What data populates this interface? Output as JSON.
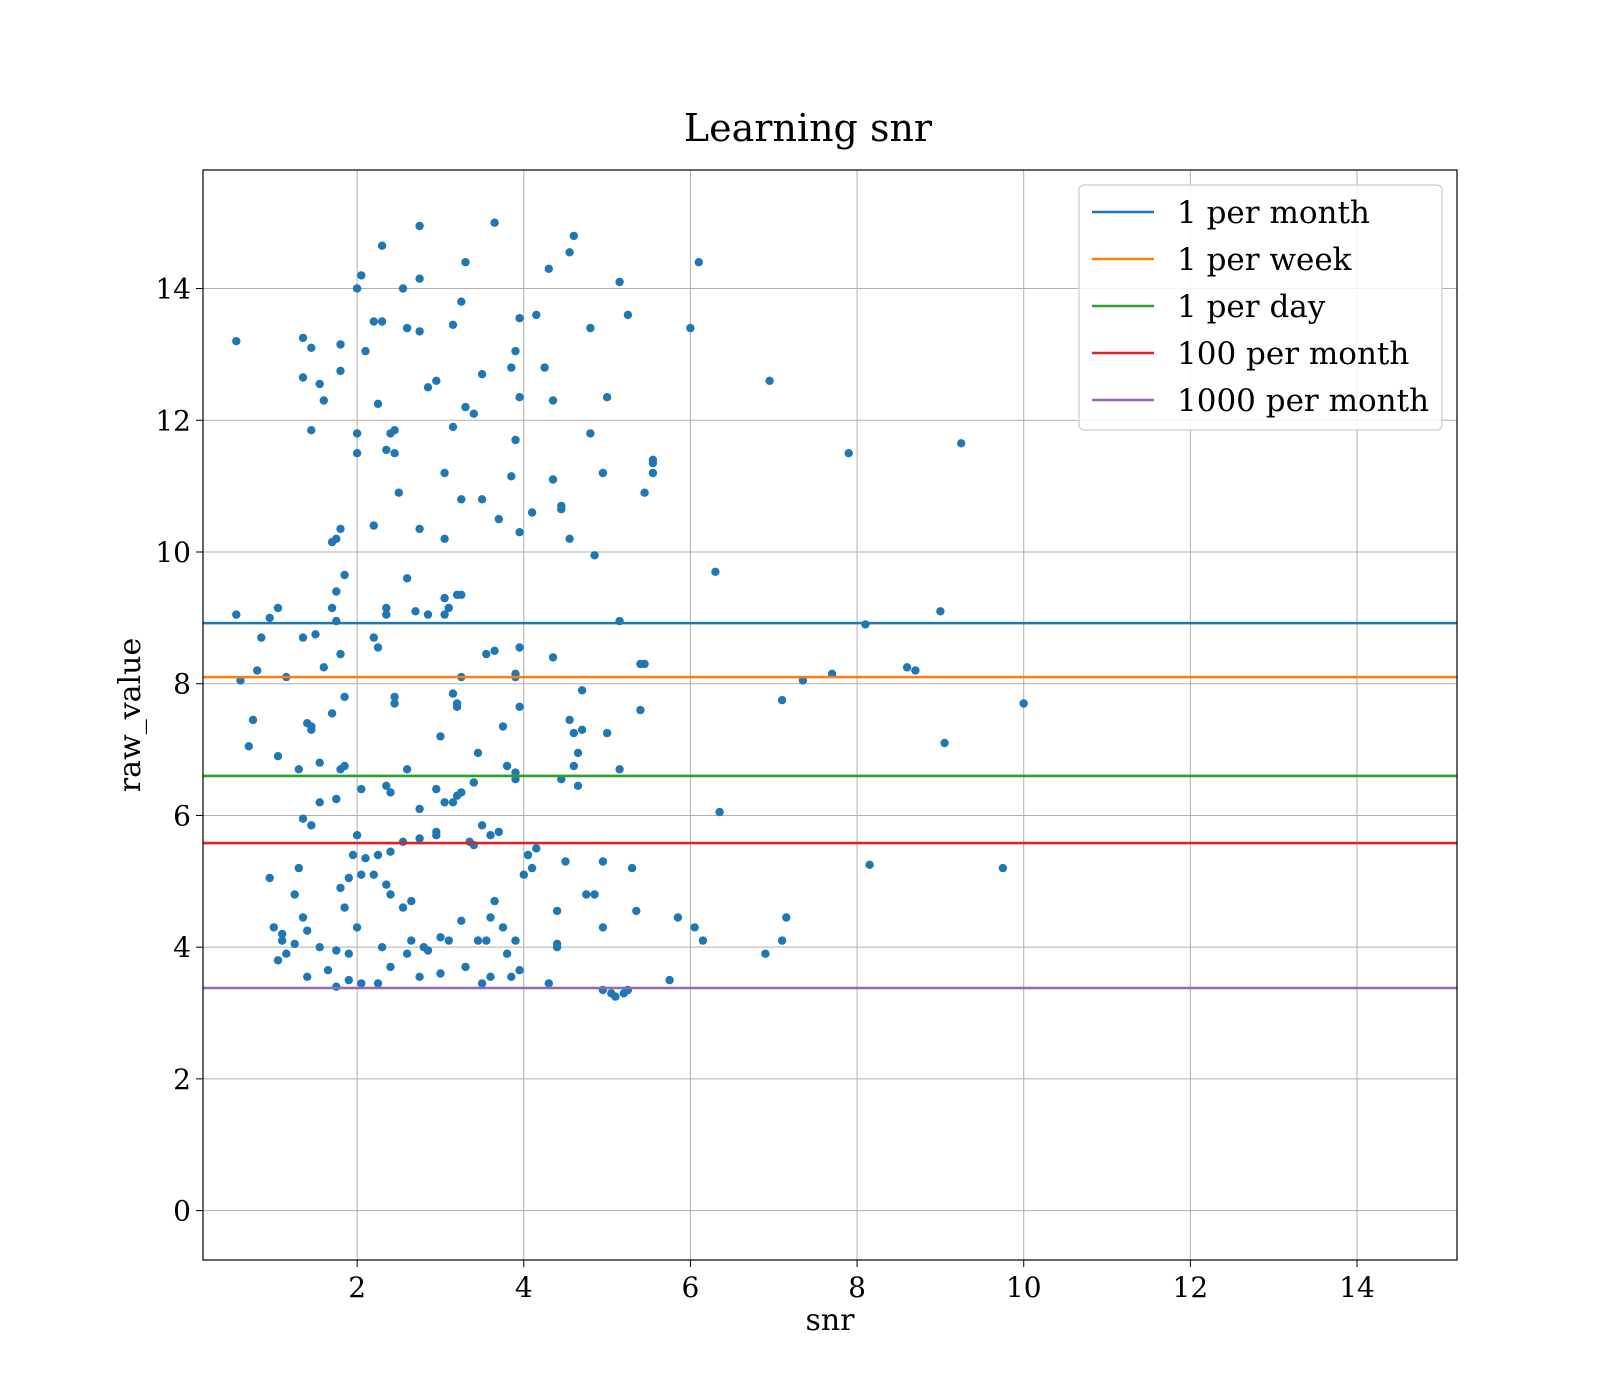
{
  "chart_data": {
    "type": "scatter",
    "title": "Learning snr",
    "xlabel": "snr",
    "ylabel": "raw_value",
    "xlim": [
      0.15,
      15.2
    ],
    "ylim": [
      -0.75,
      15.8
    ],
    "xticks": [
      2,
      4,
      6,
      8,
      10,
      12,
      14
    ],
    "yticks": [
      0,
      2,
      4,
      6,
      8,
      10,
      12,
      14
    ],
    "grid": true,
    "legend_position": "top-right",
    "scatter_color": "#1f77b4",
    "series": [
      {
        "name": "1 per month",
        "type": "hline",
        "y": 8.92,
        "color": "#1f77b4"
      },
      {
        "name": "1 per week",
        "type": "hline",
        "y": 8.1,
        "color": "#ff7f0e"
      },
      {
        "name": "1 per day",
        "type": "hline",
        "y": 6.6,
        "color": "#2ca02c"
      },
      {
        "name": "100 per month",
        "type": "hline",
        "y": 5.58,
        "color": "#d62728"
      },
      {
        "name": "1000 per month",
        "type": "hline",
        "y": 3.38,
        "color": "#9467bd"
      }
    ],
    "points": [
      [
        0.55,
        13.2
      ],
      [
        1.35,
        13.25
      ],
      [
        1.45,
        13.1
      ],
      [
        1.8,
        13.15
      ],
      [
        1.55,
        12.55
      ],
      [
        1.35,
        12.65
      ],
      [
        1.8,
        12.75
      ],
      [
        1.6,
        12.3
      ],
      [
        1.45,
        11.85
      ],
      [
        2.0,
        14.0
      ],
      [
        2.05,
        14.2
      ],
      [
        2.3,
        14.65
      ],
      [
        2.75,
        14.95
      ],
      [
        2.75,
        14.15
      ],
      [
        2.55,
        14.0
      ],
      [
        3.3,
        14.4
      ],
      [
        3.25,
        13.8
      ],
      [
        3.65,
        15.0
      ],
      [
        2.2,
        13.5
      ],
      [
        2.3,
        13.5
      ],
      [
        2.1,
        13.05
      ],
      [
        2.6,
        13.4
      ],
      [
        2.75,
        13.35
      ],
      [
        3.15,
        13.45
      ],
      [
        3.9,
        13.05
      ],
      [
        3.95,
        13.55
      ],
      [
        4.15,
        13.6
      ],
      [
        4.3,
        14.3
      ],
      [
        4.55,
        14.55
      ],
      [
        4.6,
        14.8
      ],
      [
        2.25,
        12.25
      ],
      [
        2.85,
        12.5
      ],
      [
        2.95,
        12.6
      ],
      [
        3.3,
        12.2
      ],
      [
        3.4,
        12.1
      ],
      [
        3.5,
        12.7
      ],
      [
        3.85,
        12.8
      ],
      [
        3.95,
        12.35
      ],
      [
        4.25,
        12.8
      ],
      [
        4.35,
        12.3
      ],
      [
        4.8,
        13.4
      ],
      [
        5.0,
        12.35
      ],
      [
        5.15,
        14.1
      ],
      [
        5.25,
        13.6
      ],
      [
        6.0,
        13.4
      ],
      [
        6.1,
        14.4
      ],
      [
        2.0,
        11.8
      ],
      [
        2.0,
        11.5
      ],
      [
        2.35,
        11.55
      ],
      [
        2.4,
        11.8
      ],
      [
        2.45,
        11.85
      ],
      [
        2.45,
        11.5
      ],
      [
        3.15,
        11.9
      ],
      [
        3.05,
        11.2
      ],
      [
        3.85,
        11.15
      ],
      [
        3.9,
        11.7
      ],
      [
        4.35,
        11.1
      ],
      [
        4.8,
        11.8
      ],
      [
        4.95,
        11.2
      ],
      [
        5.45,
        10.9
      ],
      [
        5.55,
        11.35
      ],
      [
        5.55,
        11.2
      ],
      [
        5.55,
        11.4
      ],
      [
        2.5,
        10.9
      ],
      [
        3.25,
        10.8
      ],
      [
        3.5,
        10.8
      ],
      [
        3.7,
        10.5
      ],
      [
        3.95,
        10.3
      ],
      [
        4.1,
        10.6
      ],
      [
        4.45,
        10.7
      ],
      [
        4.45,
        10.65
      ],
      [
        4.55,
        10.2
      ],
      [
        2.2,
        10.4
      ],
      [
        2.75,
        10.35
      ],
      [
        3.05,
        10.2
      ],
      [
        1.8,
        10.35
      ],
      [
        1.7,
        10.15
      ],
      [
        1.75,
        10.2
      ],
      [
        4.85,
        9.95
      ],
      [
        6.3,
        9.7
      ],
      [
        0.55,
        9.05
      ],
      [
        0.95,
        9.0
      ],
      [
        1.05,
        9.15
      ],
      [
        1.85,
        9.65
      ],
      [
        1.75,
        9.4
      ],
      [
        1.7,
        9.15
      ],
      [
        2.35,
        9.15
      ],
      [
        2.35,
        9.05
      ],
      [
        2.6,
        9.6
      ],
      [
        2.7,
        9.1
      ],
      [
        2.85,
        9.05
      ],
      [
        3.05,
        9.05
      ],
      [
        3.05,
        9.3
      ],
      [
        3.2,
        9.35
      ],
      [
        3.25,
        9.35
      ],
      [
        3.1,
        9.15
      ],
      [
        7.9,
        11.5
      ],
      [
        9.25,
        11.65
      ],
      [
        6.95,
        12.6
      ],
      [
        1.35,
        8.7
      ],
      [
        1.5,
        8.75
      ],
      [
        1.75,
        8.95
      ],
      [
        0.85,
        8.7
      ],
      [
        2.2,
        8.7
      ],
      [
        2.25,
        8.55
      ],
      [
        1.6,
        8.25
      ],
      [
        1.8,
        8.45
      ],
      [
        0.8,
        8.2
      ],
      [
        0.6,
        8.05
      ],
      [
        1.15,
        8.1
      ],
      [
        3.25,
        8.1
      ],
      [
        3.65,
        8.5
      ],
      [
        3.55,
        8.45
      ],
      [
        3.9,
        8.1
      ],
      [
        3.9,
        8.15
      ],
      [
        3.95,
        8.55
      ],
      [
        4.35,
        8.4
      ],
      [
        4.7,
        7.9
      ],
      [
        5.4,
        8.3
      ],
      [
        5.45,
        8.3
      ],
      [
        5.15,
        8.95
      ],
      [
        8.1,
        8.9
      ],
      [
        8.6,
        8.25
      ],
      [
        8.7,
        8.2
      ],
      [
        9.0,
        9.1
      ],
      [
        7.7,
        8.15
      ],
      [
        7.35,
        8.05
      ],
      [
        7.1,
        7.75
      ],
      [
        10.0,
        7.7
      ],
      [
        9.05,
        7.1
      ],
      [
        2.45,
        7.8
      ],
      [
        2.45,
        7.7
      ],
      [
        3.15,
        7.85
      ],
      [
        3.2,
        7.65
      ],
      [
        3.2,
        7.7
      ],
      [
        3.95,
        7.65
      ],
      [
        1.85,
        7.8
      ],
      [
        1.7,
        7.55
      ],
      [
        0.75,
        7.45
      ],
      [
        0.7,
        7.05
      ],
      [
        1.4,
        7.4
      ],
      [
        1.45,
        7.35
      ],
      [
        1.45,
        7.3
      ],
      [
        1.05,
        6.9
      ],
      [
        1.3,
        6.7
      ],
      [
        1.55,
        6.8
      ],
      [
        1.8,
        6.7
      ],
      [
        1.85,
        6.75
      ],
      [
        2.6,
        6.7
      ],
      [
        3.0,
        7.2
      ],
      [
        3.45,
        6.95
      ],
      [
        3.75,
        7.35
      ],
      [
        3.8,
        6.75
      ],
      [
        3.9,
        6.65
      ],
      [
        3.9,
        6.55
      ],
      [
        4.45,
        6.55
      ],
      [
        4.6,
        7.25
      ],
      [
        4.6,
        6.75
      ],
      [
        4.55,
        7.45
      ],
      [
        4.7,
        7.3
      ],
      [
        4.65,
        6.95
      ],
      [
        4.65,
        6.45
      ],
      [
        5.0,
        7.25
      ],
      [
        5.15,
        6.7
      ],
      [
        5.4,
        7.6
      ],
      [
        6.35,
        6.05
      ],
      [
        2.05,
        6.4
      ],
      [
        2.35,
        6.45
      ],
      [
        2.4,
        6.35
      ],
      [
        2.75,
        6.1
      ],
      [
        2.95,
        6.4
      ],
      [
        3.05,
        6.2
      ],
      [
        3.15,
        6.2
      ],
      [
        3.2,
        6.3
      ],
      [
        3.25,
        6.35
      ],
      [
        3.4,
        6.5
      ],
      [
        1.55,
        6.2
      ],
      [
        1.75,
        6.25
      ],
      [
        1.35,
        5.95
      ],
      [
        1.45,
        5.85
      ],
      [
        2.0,
        5.7
      ],
      [
        2.25,
        5.4
      ],
      [
        2.4,
        5.45
      ],
      [
        2.55,
        5.6
      ],
      [
        2.75,
        5.65
      ],
      [
        2.95,
        5.7
      ],
      [
        2.95,
        5.75
      ],
      [
        3.35,
        5.6
      ],
      [
        3.4,
        5.55
      ],
      [
        3.5,
        5.85
      ],
      [
        3.6,
        5.7
      ],
      [
        3.7,
        5.75
      ],
      [
        4.0,
        5.1
      ],
      [
        4.05,
        5.4
      ],
      [
        4.1,
        5.2
      ],
      [
        4.15,
        5.5
      ],
      [
        4.5,
        5.3
      ],
      [
        4.95,
        5.3
      ],
      [
        5.3,
        5.2
      ],
      [
        8.15,
        5.25
      ],
      [
        9.75,
        5.2
      ],
      [
        0.95,
        5.05
      ],
      [
        1.3,
        5.2
      ],
      [
        1.8,
        4.9
      ],
      [
        1.9,
        5.05
      ],
      [
        1.95,
        5.4
      ],
      [
        2.05,
        5.1
      ],
      [
        2.1,
        5.35
      ],
      [
        2.2,
        5.1
      ],
      [
        2.35,
        4.95
      ],
      [
        2.4,
        4.8
      ],
      [
        2.55,
        4.6
      ],
      [
        2.65,
        4.7
      ],
      [
        1.25,
        4.8
      ],
      [
        1.35,
        4.45
      ],
      [
        1.4,
        4.25
      ],
      [
        1.85,
        4.6
      ],
      [
        2.0,
        4.3
      ],
      [
        1.0,
        4.3
      ],
      [
        1.1,
        4.2
      ],
      [
        1.1,
        4.1
      ],
      [
        1.25,
        4.05
      ],
      [
        1.05,
        3.8
      ],
      [
        1.15,
        3.9
      ],
      [
        1.55,
        4.0
      ],
      [
        1.75,
        3.95
      ],
      [
        1.9,
        3.9
      ],
      [
        2.3,
        4.0
      ],
      [
        2.6,
        3.9
      ],
      [
        2.65,
        4.1
      ],
      [
        2.8,
        4.0
      ],
      [
        2.85,
        3.95
      ],
      [
        3.0,
        4.15
      ],
      [
        3.1,
        4.1
      ],
      [
        3.25,
        4.4
      ],
      [
        3.45,
        4.1
      ],
      [
        3.55,
        4.1
      ],
      [
        3.6,
        4.45
      ],
      [
        3.65,
        4.7
      ],
      [
        3.75,
        4.3
      ],
      [
        3.8,
        3.9
      ],
      [
        3.9,
        4.1
      ],
      [
        4.4,
        4.55
      ],
      [
        4.4,
        4.05
      ],
      [
        4.4,
        4.0
      ],
      [
        4.75,
        4.8
      ],
      [
        4.85,
        4.8
      ],
      [
        4.95,
        4.3
      ],
      [
        5.35,
        4.55
      ],
      [
        5.85,
        4.45
      ],
      [
        6.05,
        4.3
      ],
      [
        6.15,
        4.1
      ],
      [
        7.15,
        4.45
      ],
      [
        7.1,
        4.1
      ],
      [
        6.9,
        3.9
      ],
      [
        5.75,
        3.5
      ],
      [
        1.4,
        3.55
      ],
      [
        1.65,
        3.65
      ],
      [
        1.75,
        3.4
      ],
      [
        1.9,
        3.5
      ],
      [
        2.05,
        3.45
      ],
      [
        2.25,
        3.45
      ],
      [
        2.4,
        3.7
      ],
      [
        2.75,
        3.55
      ],
      [
        3.0,
        3.6
      ],
      [
        3.3,
        3.7
      ],
      [
        3.5,
        3.45
      ],
      [
        3.6,
        3.55
      ],
      [
        3.85,
        3.55
      ],
      [
        3.95,
        3.65
      ],
      [
        4.3,
        3.45
      ],
      [
        4.95,
        3.35
      ],
      [
        5.05,
        3.3
      ],
      [
        5.1,
        3.25
      ],
      [
        5.2,
        3.3
      ],
      [
        5.25,
        3.35
      ]
    ]
  }
}
